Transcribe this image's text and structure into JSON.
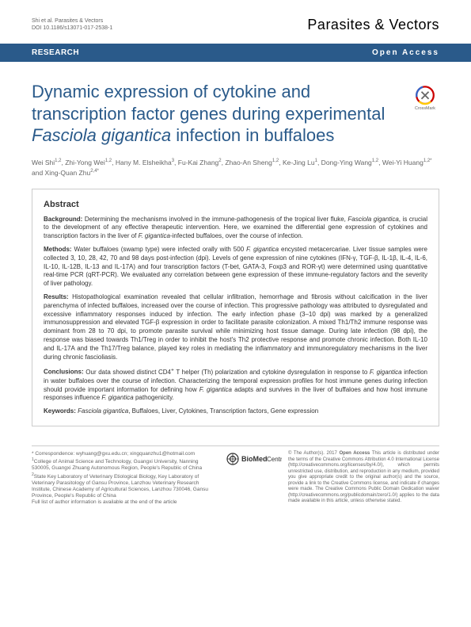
{
  "header": {
    "citation": "Shi et al. Parasites & Vectors",
    "doi": "DOI 10.1186/s13071-017-2538-1",
    "journal": "Parasites & Vectors"
  },
  "bar": {
    "type": "RESEARCH",
    "access": "Open Access"
  },
  "title": "Dynamic expression of cytokine and transcription factor genes during experimental <em>Fasciola gigantica</em> infection in buffaloes",
  "authors": "Wei Shi<sup>1,2</sup>, Zhi-Yong Wei<sup>1,2</sup>, Hany M. Elsheikha<sup>3</sup>, Fu-Kai Zhang<sup>2</sup>, Zhao-An Sheng<sup>1,2</sup>, Ke-Jing Lu<sup>1</sup>, Dong-Ying Wang<sup>1,2</sup>, Wei-Yi Huang<sup>1,2*</sup> and Xing-Quan Zhu<sup>2,4*</sup>",
  "abstract": {
    "heading": "Abstract",
    "background": {
      "label": "Background:",
      "text": "Determining the mechanisms involved in the immune-pathogenesis of the tropical liver fluke, <em>Fasciola gigantica</em>, is crucial to the development of any effective therapeutic intervention. Here, we examined the differential gene expression of cytokines and transcription factors in the liver of <em>F. gigantica</em>-infected buffaloes, over the course of infection."
    },
    "methods": {
      "label": "Methods:",
      "text": "Water buffaloes (swamp type) were infected orally with 500 <em>F. gigantica</em> encysted metacercariae. Liver tissue samples were collected 3, 10, 28, 42, 70 and 98 days post-infection (dpi). Levels of gene expression of nine cytokines (IFN-γ, TGF-β, IL-1β, IL-4, IL-6, IL-10, IL-12B, IL-13 and IL-17A) and four transcription factors (T-bet, GATA-3, Foxp3 and ROR-γt) were determined using quantitative real-time PCR (qRT-PCR). We evaluated any correlation between gene expression of these immune-regulatory factors and the severity of liver pathology."
    },
    "results": {
      "label": "Results:",
      "text": "Histopathological examination revealed that cellular infiltration, hemorrhage and fibrosis without calcification in the liver parenchyma of infected buffaloes, increased over the course of infection. This progressive pathology was attributed to dysregulated and excessive inflammatory responses induced by infection. The early infection phase (3–10 dpi) was marked by a generalized immunosuppression and elevated TGF-β expression in order to facilitate parasite colonization. A mixed Th1/Th2 immune response was dominant from 28 to 70 dpi, to promote parasite survival while minimizing host tissue damage. During late infection (98 dpi), the response was biased towards Th1/Treg in order to inhibit the host's Th2 protective response and promote chronic infection. Both IL-10 and IL-17A and the Th17/Treg balance, played key roles in mediating the inflammatory and immunoregulatory mechanisms in the liver during chronic fascioliasis."
    },
    "conclusions": {
      "label": "Conclusions:",
      "text": "Our data showed distinct CD4<sup>+</sup> T helper (Th) polarization and cytokine dysregulation in response to <em>F. gigantica</em> infection in water buffaloes over the course of infection. Characterizing the temporal expression profiles for host immune genes during infection should provide important information for defining how <em>F. gigantica</em> adapts and survives in the liver of buffaloes and how host immune responses influence <em>F. gigantica</em> pathogenicity."
    },
    "keywords": {
      "label": "Keywords:",
      "text": "<em>Fasciola gigantica</em>, Buffaloes, Liver, Cytokines, Transcription factors, Gene expression"
    }
  },
  "footer": {
    "correspondence": "* Correspondence: wyhuang@gxu.edu.cn; xingquanzhu1@hotmail.com<br><sup>1</sup>College of Animal Science and Technology, Guangxi University, Nanning 530005, Guangxi Zhuang Autonomous Region, People's Republic of China<br><sup>2</sup>State Key Laboratory of Veterinary Etiological Biology, Key Laboratory of Veterinary Parasitology of Gansu Province, Lanzhou Veterinary Research Institute, Chinese Academy of Agricultural Sciences, Lanzhou 730046, Gansu Province, People's Republic of China<br>Full list of author information is available at the end of the article",
    "bmc": "BioMed Central",
    "license": "© The Author(s). 2017 <b>Open Access</b> This article is distributed under the terms of the Creative Commons Attribution 4.0 International License (http://creativecommons.org/licenses/by/4.0/), which permits unrestricted use, distribution, and reproduction in any medium, provided you give appropriate credit to the original author(s) and the source, provide a link to the Creative Commons license, and indicate if changes were made. The Creative Commons Public Domain Dedication waiver (http://creativecommons.org/publicdomain/zero/1.0/) applies to the data made available in this article, unless otherwise stated."
  },
  "colors": {
    "header_bar": "#2a5a8a",
    "title_color": "#2a5a8a",
    "text_color": "#333333",
    "muted": "#666666",
    "border": "#cccccc"
  }
}
